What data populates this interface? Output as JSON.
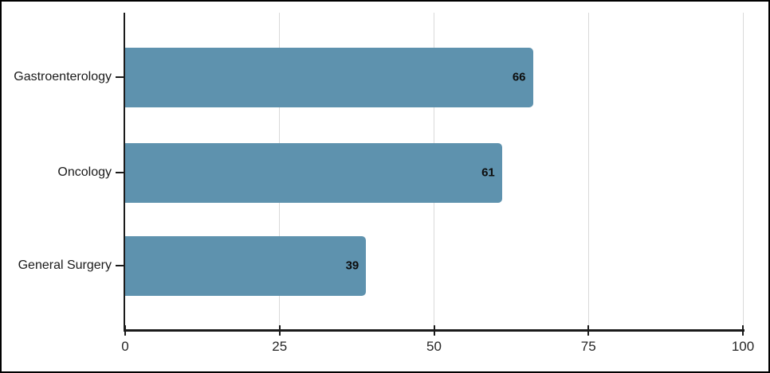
{
  "chart_data": {
    "type": "bar",
    "orientation": "horizontal",
    "title": "",
    "xlabel": "",
    "ylabel": "",
    "categories": [
      "Gastroenterology",
      "Oncology",
      "General Surgery"
    ],
    "values": [
      66,
      61,
      39
    ],
    "value_labels": [
      "66",
      "61",
      "39"
    ],
    "xlim": [
      0,
      100
    ],
    "x_ticks": [
      0,
      25,
      50,
      75,
      100
    ],
    "x_tick_labels": [
      "0",
      "25",
      "50",
      "75",
      "100"
    ],
    "grid": "vertical gridlines at x ticks",
    "legend": "none",
    "bar_color": "#5E92AE",
    "axis_color": "#1a1a1a",
    "gridline_color": "#d9d9d9",
    "frame_border_color": "#000000"
  }
}
